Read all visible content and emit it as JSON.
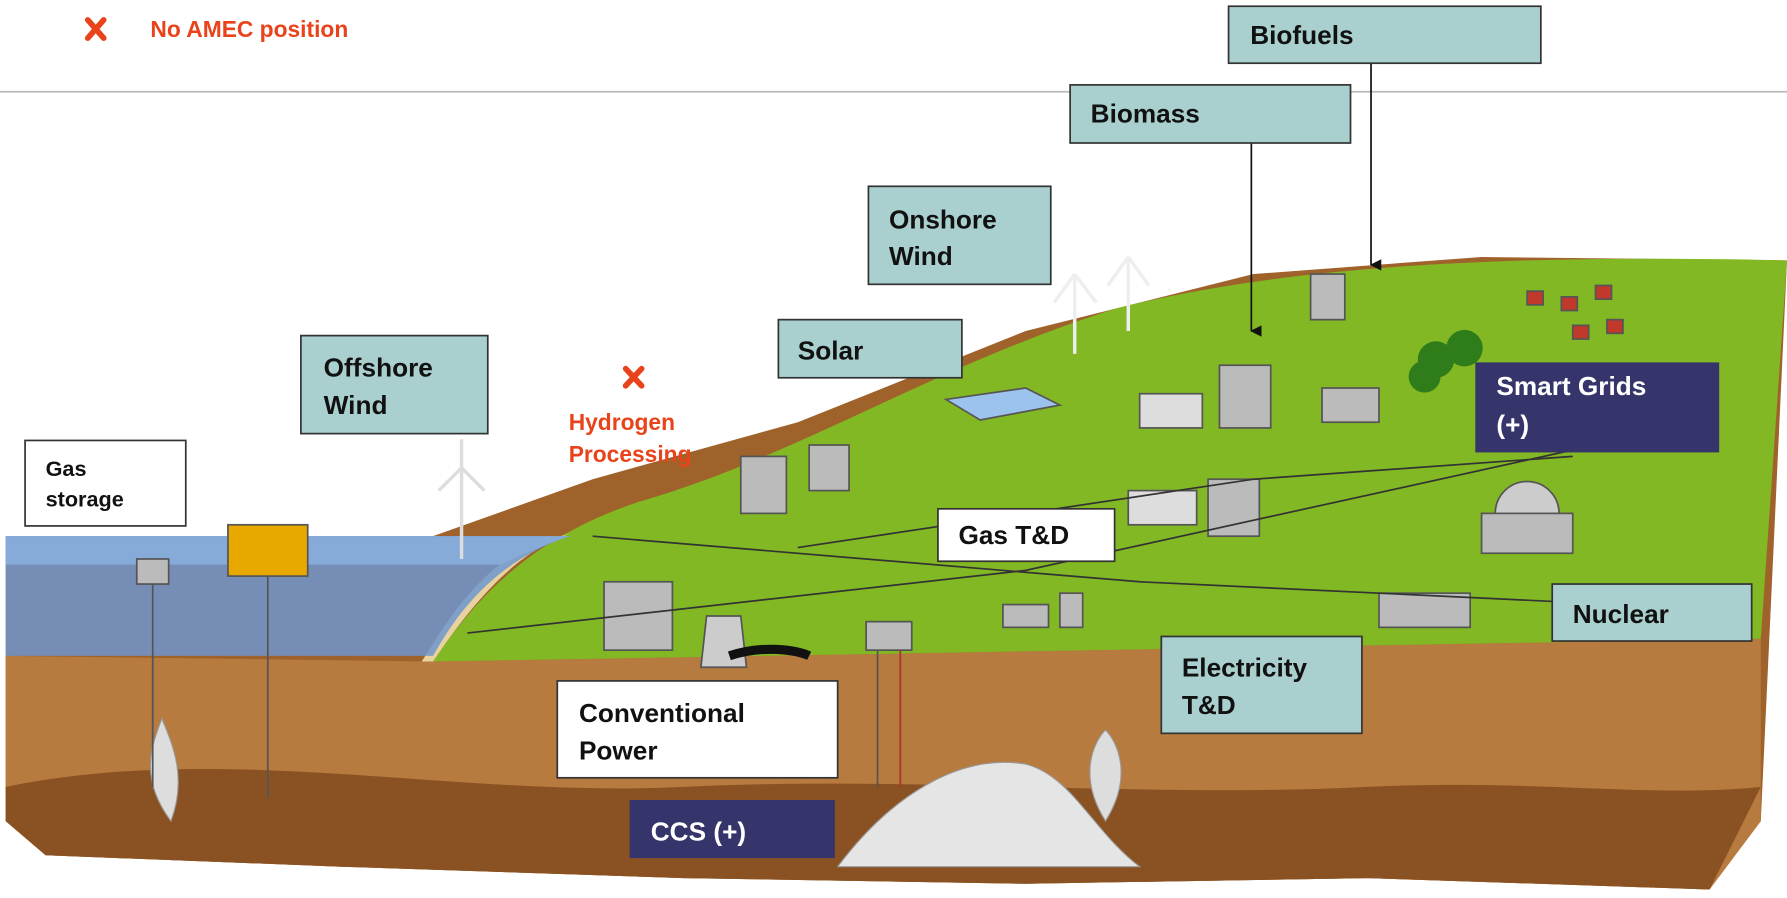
{
  "legend": {
    "label": "No AMEC position"
  },
  "boxes": {
    "biofuels": [
      "Biofuels"
    ],
    "biomass": [
      "Biomass"
    ],
    "onshore_wind": [
      "Onshore",
      "Wind"
    ],
    "solar": [
      "Solar"
    ],
    "offshore_wind": [
      "Offshore",
      "Wind"
    ],
    "hydrogen": [
      "Hydrogen",
      "Processing"
    ],
    "gas_storage": [
      "Gas",
      "storage"
    ],
    "gas_td": [
      "Gas T&D"
    ],
    "smart_grids": [
      "Smart Grids",
      "(+)"
    ],
    "nuclear": [
      "Nuclear"
    ],
    "electricity_td": [
      "Electricity",
      "T&D"
    ],
    "conventional_power": [
      "Conventional",
      "Power"
    ],
    "ccs": [
      "CCS (+)"
    ]
  }
}
